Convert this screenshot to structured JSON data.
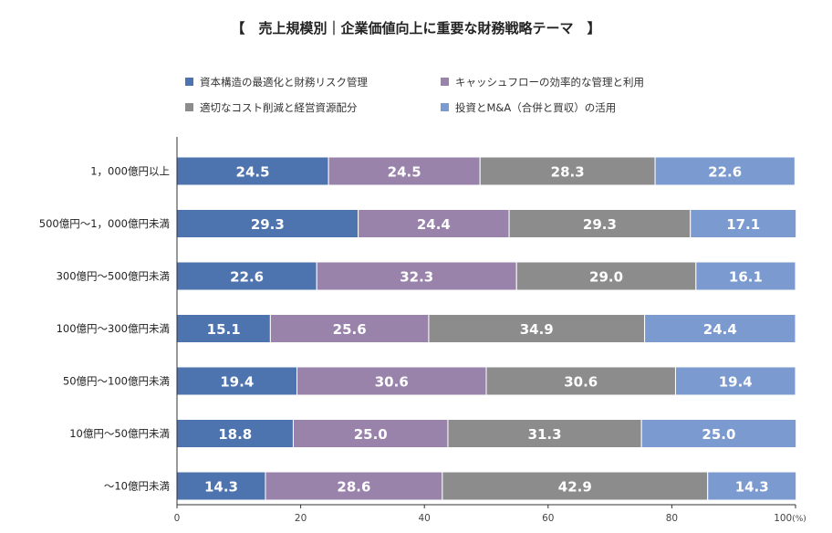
{
  "chart_data": {
    "type": "bar",
    "orientation": "horizontal",
    "stacked": true,
    "title": "【　売上規模別｜企業価値向上に重要な財務戦略テーマ　】",
    "categories": [
      "1，000億円以上",
      "500億円～1，000億円未満",
      "300億円～500億円未満",
      "100億円～300億円未満",
      "50億円～100億円未満",
      "10億円～50億円未満",
      "～10億円未満"
    ],
    "series": [
      {
        "name": "資本構造の最適化と財務リスク管理",
        "color": "#4e74b0",
        "values": [
          24.5,
          29.3,
          22.6,
          15.1,
          19.4,
          18.8,
          14.3
        ]
      },
      {
        "name": "キャッシュフローの効率的な管理と利用",
        "color": "#9a83ab",
        "values": [
          24.5,
          24.4,
          32.3,
          25.6,
          30.6,
          25.0,
          28.6
        ]
      },
      {
        "name": "適切なコスト削減と経営資源配分",
        "color": "#8c8c8c",
        "values": [
          28.3,
          29.3,
          29.0,
          34.9,
          30.6,
          31.3,
          42.9
        ]
      },
      {
        "name": "投資とM&A（合併と買収）の活用",
        "color": "#7b9bd0",
        "values": [
          22.6,
          17.1,
          16.1,
          24.4,
          19.4,
          25.0,
          14.3
        ]
      }
    ],
    "xlim": [
      0,
      100
    ],
    "xticks": [
      "0",
      "20",
      "40",
      "60",
      "80",
      "100"
    ],
    "xunit": "(%)",
    "legend_position": "top",
    "grid": false
  }
}
